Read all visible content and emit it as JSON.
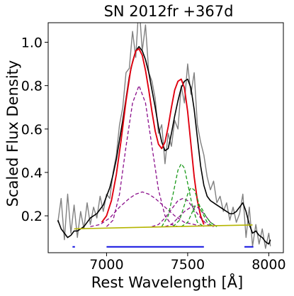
{
  "chart_data": {
    "type": "line",
    "title": "SN 2012fr  +367d",
    "xlabel": "Rest Wavelength [Å]",
    "ylabel": "Scaled Flux Density",
    "xlim": [
      6640,
      8090
    ],
    "ylim": [
      0.03,
      1.09
    ],
    "xticks": [
      7000,
      7500,
      8000
    ],
    "yticks": [
      0.2,
      0.4,
      0.6,
      0.8,
      1.0
    ],
    "grid": false,
    "legend": "none",
    "colors": {
      "raw": "#808080",
      "smoothed": "#000000",
      "fit": "#e0000f",
      "continuum": "#b5b500",
      "purple": "#8b0f8b",
      "green": "#1a9a1a",
      "region": "#1010e0"
    },
    "series": [
      {
        "style": "raw-noisy",
        "color": "raw",
        "x": [
          6700,
          6720,
          6740,
          6760,
          6780,
          6800,
          6820,
          6840,
          6860,
          6880,
          6900,
          6920,
          6940,
          6960,
          6980,
          7000,
          7020,
          7040,
          7060,
          7080,
          7100,
          7120,
          7140,
          7160,
          7180,
          7200,
          7220,
          7240,
          7260,
          7280,
          7300,
          7320,
          7340,
          7360,
          7380,
          7400,
          7420,
          7440,
          7460,
          7480,
          7500,
          7520,
          7540,
          7560,
          7580,
          7600,
          7620,
          7640,
          7660,
          7680,
          7700,
          7720,
          7740,
          7760,
          7780,
          7800,
          7820,
          7840,
          7860,
          7880,
          7900,
          7920,
          7940,
          7960,
          7980,
          8000,
          8010
        ],
        "y": [
          0.17,
          0.28,
          0.09,
          0.3,
          0.12,
          0.25,
          0.1,
          0.22,
          0.14,
          0.26,
          0.16,
          0.24,
          0.19,
          0.29,
          0.22,
          0.3,
          0.28,
          0.4,
          0.48,
          0.62,
          0.7,
          0.86,
          0.88,
          1.05,
          0.93,
          1.18,
          0.96,
          1.08,
          0.86,
          0.82,
          0.74,
          0.58,
          0.62,
          0.44,
          0.58,
          0.52,
          0.64,
          0.6,
          0.8,
          0.72,
          0.9,
          0.76,
          0.86,
          0.62,
          0.54,
          0.48,
          0.38,
          0.32,
          0.36,
          0.26,
          0.29,
          0.22,
          0.26,
          0.18,
          0.24,
          0.17,
          0.21,
          0.3,
          0.1,
          0.24,
          0.06,
          0.16,
          0.07,
          0.14,
          0.05,
          0.12,
          0.06
        ]
      },
      {
        "style": "smoothed",
        "color": "smoothed",
        "x": [
          6700,
          6720,
          6740,
          6760,
          6780,
          6800,
          6820,
          6840,
          6860,
          6880,
          6900,
          6920,
          6940,
          6960,
          6980,
          7000,
          7020,
          7040,
          7060,
          7080,
          7100,
          7120,
          7140,
          7160,
          7180,
          7200,
          7220,
          7240,
          7260,
          7280,
          7300,
          7320,
          7340,
          7360,
          7380,
          7400,
          7420,
          7440,
          7460,
          7480,
          7500,
          7520,
          7540,
          7560,
          7580,
          7600,
          7620,
          7640,
          7660,
          7680,
          7700,
          7720,
          7740,
          7760,
          7780,
          7800,
          7820,
          7840,
          7860,
          7880,
          7900,
          7920,
          7940,
          7960,
          7980,
          8000,
          8010
        ],
        "y": [
          0.18,
          0.14,
          0.12,
          0.1,
          0.11,
          0.13,
          0.13,
          0.14,
          0.15,
          0.17,
          0.19,
          0.2,
          0.21,
          0.23,
          0.25,
          0.29,
          0.33,
          0.39,
          0.46,
          0.55,
          0.64,
          0.74,
          0.84,
          0.91,
          0.96,
          0.98,
          0.96,
          0.92,
          0.86,
          0.78,
          0.7,
          0.61,
          0.54,
          0.5,
          0.51,
          0.58,
          0.66,
          0.73,
          0.79,
          0.82,
          0.83,
          0.79,
          0.69,
          0.56,
          0.43,
          0.34,
          0.29,
          0.27,
          0.26,
          0.25,
          0.24,
          0.23,
          0.22,
          0.21,
          0.21,
          0.22,
          0.24,
          0.26,
          0.22,
          0.16,
          0.12,
          0.13,
          0.11,
          0.1,
          0.08,
          0.07,
          0.09
        ]
      },
      {
        "style": "model-total",
        "color": "fit",
        "x": [
          6970,
          7000,
          7030,
          7060,
          7090,
          7120,
          7150,
          7180,
          7200,
          7220,
          7240,
          7260,
          7280,
          7300,
          7320,
          7340,
          7360,
          7380,
          7400,
          7420,
          7440,
          7460,
          7480,
          7500,
          7520,
          7540,
          7560,
          7580,
          7600
        ],
        "y": [
          0.17,
          0.2,
          0.27,
          0.39,
          0.55,
          0.73,
          0.88,
          0.96,
          0.97,
          0.94,
          0.87,
          0.78,
          0.68,
          0.59,
          0.53,
          0.51,
          0.54,
          0.61,
          0.7,
          0.78,
          0.82,
          0.83,
          0.79,
          0.68,
          0.53,
          0.38,
          0.27,
          0.2,
          0.16
        ]
      },
      {
        "style": "component-dashed",
        "color": "purple",
        "x": [
          7000,
          7040,
          7080,
          7120,
          7160,
          7200,
          7240,
          7280,
          7320,
          7360,
          7400,
          7440
        ],
        "y": [
          0.15,
          0.18,
          0.3,
          0.52,
          0.72,
          0.8,
          0.72,
          0.52,
          0.32,
          0.2,
          0.16,
          0.15
        ]
      },
      {
        "style": "component-dashed",
        "color": "purple",
        "x": [
          6900,
          6960,
          7020,
          7080,
          7140,
          7180,
          7220,
          7260,
          7300,
          7360,
          7420,
          7480,
          7540,
          7600
        ],
        "y": [
          0.15,
          0.16,
          0.19,
          0.24,
          0.28,
          0.3,
          0.31,
          0.3,
          0.28,
          0.24,
          0.2,
          0.17,
          0.16,
          0.15
        ]
      },
      {
        "style": "component-dashed",
        "color": "purple",
        "x": [
          7280,
          7320,
          7360,
          7400,
          7440,
          7470,
          7500,
          7540,
          7580,
          7620,
          7660
        ],
        "y": [
          0.15,
          0.16,
          0.19,
          0.23,
          0.27,
          0.28,
          0.27,
          0.23,
          0.19,
          0.16,
          0.15
        ]
      },
      {
        "style": "component-dashed",
        "color": "purple",
        "x": [
          7360,
          7400,
          7440,
          7480,
          7520,
          7540,
          7560,
          7600,
          7640,
          7680
        ],
        "y": [
          0.15,
          0.16,
          0.19,
          0.22,
          0.24,
          0.245,
          0.24,
          0.21,
          0.17,
          0.15
        ]
      },
      {
        "style": "component-dashed",
        "color": "green",
        "x": [
          7340,
          7380,
          7410,
          7440,
          7460,
          7480,
          7500,
          7530,
          7560,
          7600
        ],
        "y": [
          0.15,
          0.2,
          0.3,
          0.41,
          0.44,
          0.42,
          0.35,
          0.24,
          0.17,
          0.15
        ]
      },
      {
        "style": "component-dashed",
        "color": "green",
        "x": [
          7410,
          7450,
          7480,
          7500,
          7520,
          7540,
          7560,
          7580,
          7620,
          7660
        ],
        "y": [
          0.15,
          0.18,
          0.25,
          0.3,
          0.33,
          0.32,
          0.28,
          0.23,
          0.17,
          0.15
        ]
      },
      {
        "style": "component-dashed",
        "color": "green",
        "x": [
          7460,
          7500,
          7530,
          7550,
          7570,
          7590,
          7610,
          7640,
          7680
        ],
        "y": [
          0.15,
          0.17,
          0.22,
          0.25,
          0.25,
          0.23,
          0.2,
          0.17,
          0.15
        ]
      },
      {
        "style": "continuum",
        "color": "continuum",
        "x": [
          6800,
          7100,
          7400,
          7700,
          7900
        ],
        "y": [
          0.14,
          0.145,
          0.15,
          0.155,
          0.158
        ]
      }
    ],
    "region_bars": [
      {
        "x": [
          6790,
          6805
        ],
        "y": 0.057
      },
      {
        "x": [
          7000,
          7600
        ],
        "y": 0.057
      },
      {
        "x": [
          7850,
          7905
        ],
        "y": 0.057
      }
    ]
  }
}
